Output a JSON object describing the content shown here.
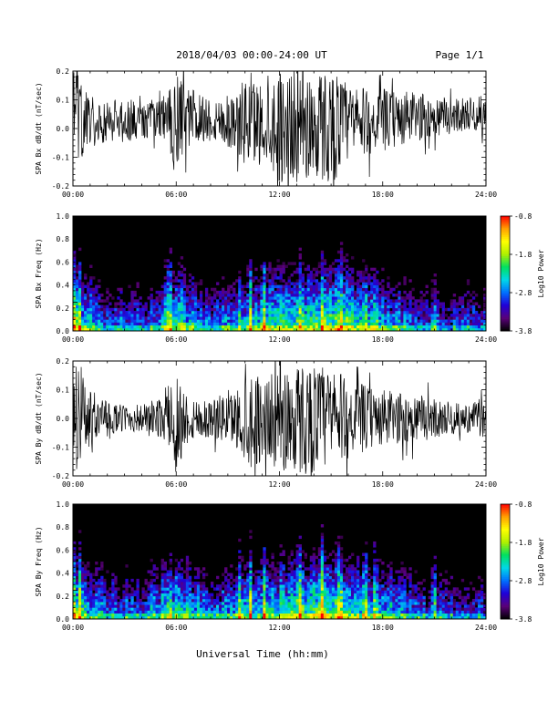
{
  "header": {
    "title": "2018/04/03  00:00-24:00 UT",
    "page": "Page 1/1"
  },
  "x_axis": {
    "label": "Universal Time (hh:mm)",
    "range_hours": [
      0,
      24
    ],
    "tick_labels": [
      "00:00",
      "06:00",
      "12:00",
      "18:00",
      "24:00"
    ],
    "tick_hours": [
      0,
      6,
      12,
      18,
      24
    ]
  },
  "colorbar": {
    "label": "Log10 Power",
    "range": [
      -3.8,
      -0.8
    ],
    "tick_labels": [
      "-0.8",
      "-1.8",
      "-2.8",
      "-3.8"
    ],
    "tick_values": [
      -0.8,
      -1.8,
      -2.8,
      -3.8
    ],
    "colors": [
      "#000000",
      "#5a007a",
      "#2000d8",
      "#0070ff",
      "#00d8e8",
      "#00e060",
      "#b0f000",
      "#ffff00",
      "#ffa000",
      "#ff0000"
    ]
  },
  "chart_data": [
    {
      "type": "line",
      "ylabel": "SPA Bx dB/dt (nT/sec)",
      "ylim": [
        -0.2,
        0.2
      ],
      "y_tick_labels": [
        "0.2",
        "0.1",
        "0.0",
        "-0.1",
        "-0.2"
      ],
      "y_tick_values": [
        0.2,
        0.1,
        0.0,
        -0.1,
        -0.2
      ],
      "series": [
        {
          "x_hours": [
            0,
            0.5,
            1,
            1.5,
            2,
            2.5,
            3,
            3.5,
            4,
            4.5,
            5,
            5.5,
            6,
            6.5,
            7,
            7.5,
            8,
            8.5,
            9,
            9.5,
            10,
            10.5,
            11,
            11.5,
            12,
            12.5,
            13,
            13.5,
            14,
            14.5,
            15,
            15.5,
            16,
            16.5,
            17,
            17.5,
            18,
            18.5,
            19,
            19.5,
            20,
            20.5,
            21,
            21.5,
            22,
            22.5,
            23,
            23.5,
            24
          ],
          "center": [
            0.03,
            0.03,
            0.03,
            0.03,
            0.03,
            0.03,
            0.03,
            0.03,
            0.03,
            0.03,
            0.03,
            0.04,
            0.0,
            0.03,
            0.04,
            0.04,
            0.03,
            0.03,
            0.03,
            0.02,
            0.02,
            0.02,
            0.02,
            0.02,
            0.01,
            0.01,
            0.01,
            0.01,
            0.01,
            0.01,
            0.01,
            0.01,
            0.02,
            0.02,
            0.02,
            0.02,
            0.03,
            0.03,
            0.03,
            0.04,
            0.04,
            0.04,
            0.04,
            0.04,
            0.04,
            0.05,
            0.05,
            0.05,
            0.05
          ],
          "amplitude": [
            0.2,
            0.14,
            0.09,
            0.08,
            0.08,
            0.07,
            0.07,
            0.07,
            0.06,
            0.07,
            0.08,
            0.08,
            0.2,
            0.12,
            0.1,
            0.09,
            0.08,
            0.08,
            0.1,
            0.1,
            0.16,
            0.16,
            0.14,
            0.15,
            0.2,
            0.2,
            0.2,
            0.2,
            0.2,
            0.2,
            0.2,
            0.18,
            0.14,
            0.13,
            0.12,
            0.1,
            0.11,
            0.1,
            0.1,
            0.09,
            0.09,
            0.08,
            0.07,
            0.07,
            0.06,
            0.06,
            0.06,
            0.06,
            0.07
          ]
        }
      ]
    },
    {
      "type": "heatmap",
      "ylabel": "SPA Bx Freq (Hz)",
      "ylim": [
        0.0,
        1.0
      ],
      "y_tick_labels": [
        "1.0",
        "0.8",
        "0.6",
        "0.4",
        "0.2",
        "0.0"
      ],
      "y_tick_values": [
        1.0,
        0.8,
        0.6,
        0.4,
        0.2,
        0.0
      ],
      "value_range_log10": [
        -3.8,
        -0.8
      ],
      "time_hours": [
        0,
        2,
        4,
        6,
        8,
        10,
        12,
        14,
        16,
        18,
        20,
        22,
        24
      ],
      "low_freq_log10_power": [
        -2.0,
        -2.6,
        -2.8,
        -2.0,
        -2.7,
        -2.3,
        -2.0,
        -1.9,
        -2.0,
        -2.3,
        -2.7,
        -2.8,
        -2.8
      ],
      "bright_stripes_hours": [
        0.1,
        0.4,
        5.6,
        9.7,
        10.3,
        11.1,
        13.2,
        14.5,
        15.5,
        17.0,
        17.6,
        21.0
      ]
    },
    {
      "type": "line",
      "ylabel": "SPA By dB/dt (nT/sec)",
      "ylim": [
        -0.2,
        0.2
      ],
      "y_tick_labels": [
        "0.2",
        "0.1",
        "0.0",
        "-0.1",
        "-0.2"
      ],
      "y_tick_values": [
        0.2,
        0.1,
        0.0,
        -0.1,
        -0.2
      ],
      "series": [
        {
          "x_hours": [
            0,
            0.5,
            1,
            1.5,
            2,
            2.5,
            3,
            3.5,
            4,
            4.5,
            5,
            5.5,
            6,
            6.5,
            7,
            7.5,
            8,
            8.5,
            9,
            9.5,
            10,
            10.5,
            11,
            11.5,
            12,
            12.5,
            13,
            13.5,
            14,
            14.5,
            15,
            15.5,
            16,
            16.5,
            17,
            17.5,
            18,
            18.5,
            19,
            19.5,
            20,
            20.5,
            21,
            21.5,
            22,
            22.5,
            23,
            23.5,
            24
          ],
          "center": [
            0.0,
            0.0,
            0.0,
            0.0,
            0.0,
            0.0,
            0.0,
            0.0,
            0.0,
            0.0,
            0.0,
            0.0,
            -0.02,
            0.0,
            0.0,
            0.0,
            0.0,
            0.0,
            0.0,
            0.0,
            0.0,
            0.0,
            0.0,
            0.0,
            0.0,
            0.0,
            0.0,
            0.0,
            0.0,
            0.0,
            0.0,
            0.0,
            0.0,
            0.0,
            0.0,
            0.0,
            0.0,
            0.0,
            0.0,
            0.0,
            0.0,
            0.0,
            0.0,
            0.0,
            0.0,
            0.0,
            0.0,
            0.0,
            0.0
          ],
          "amplitude": [
            0.2,
            0.16,
            0.1,
            0.07,
            0.06,
            0.05,
            0.05,
            0.05,
            0.05,
            0.06,
            0.07,
            0.08,
            0.2,
            0.1,
            0.08,
            0.07,
            0.07,
            0.08,
            0.09,
            0.1,
            0.17,
            0.17,
            0.15,
            0.15,
            0.2,
            0.2,
            0.2,
            0.2,
            0.19,
            0.19,
            0.18,
            0.16,
            0.14,
            0.12,
            0.12,
            0.1,
            0.1,
            0.1,
            0.09,
            0.09,
            0.08,
            0.08,
            0.07,
            0.06,
            0.06,
            0.05,
            0.05,
            0.06,
            0.07
          ]
        }
      ]
    },
    {
      "type": "heatmap",
      "ylabel": "SPA By Freq (Hz)",
      "ylim": [
        0.0,
        1.0
      ],
      "y_tick_labels": [
        "1.0",
        "0.8",
        "0.6",
        "0.4",
        "0.2",
        "0.0"
      ],
      "y_tick_values": [
        1.0,
        0.8,
        0.6,
        0.4,
        0.2,
        0.0
      ],
      "value_range_log10": [
        -3.8,
        -0.8
      ],
      "time_hours": [
        0,
        2,
        4,
        6,
        8,
        10,
        12,
        14,
        16,
        18,
        20,
        22,
        24
      ],
      "low_freq_log10_power": [
        -2.1,
        -2.6,
        -2.8,
        -2.0,
        -2.7,
        -2.3,
        -2.1,
        -1.9,
        -2.0,
        -2.3,
        -2.7,
        -2.8,
        -2.8
      ],
      "bright_stripes_hours": [
        0.1,
        0.4,
        5.6,
        9.7,
        10.3,
        11.1,
        13.2,
        14.5,
        15.5,
        17.0,
        17.6,
        21.0
      ]
    }
  ]
}
